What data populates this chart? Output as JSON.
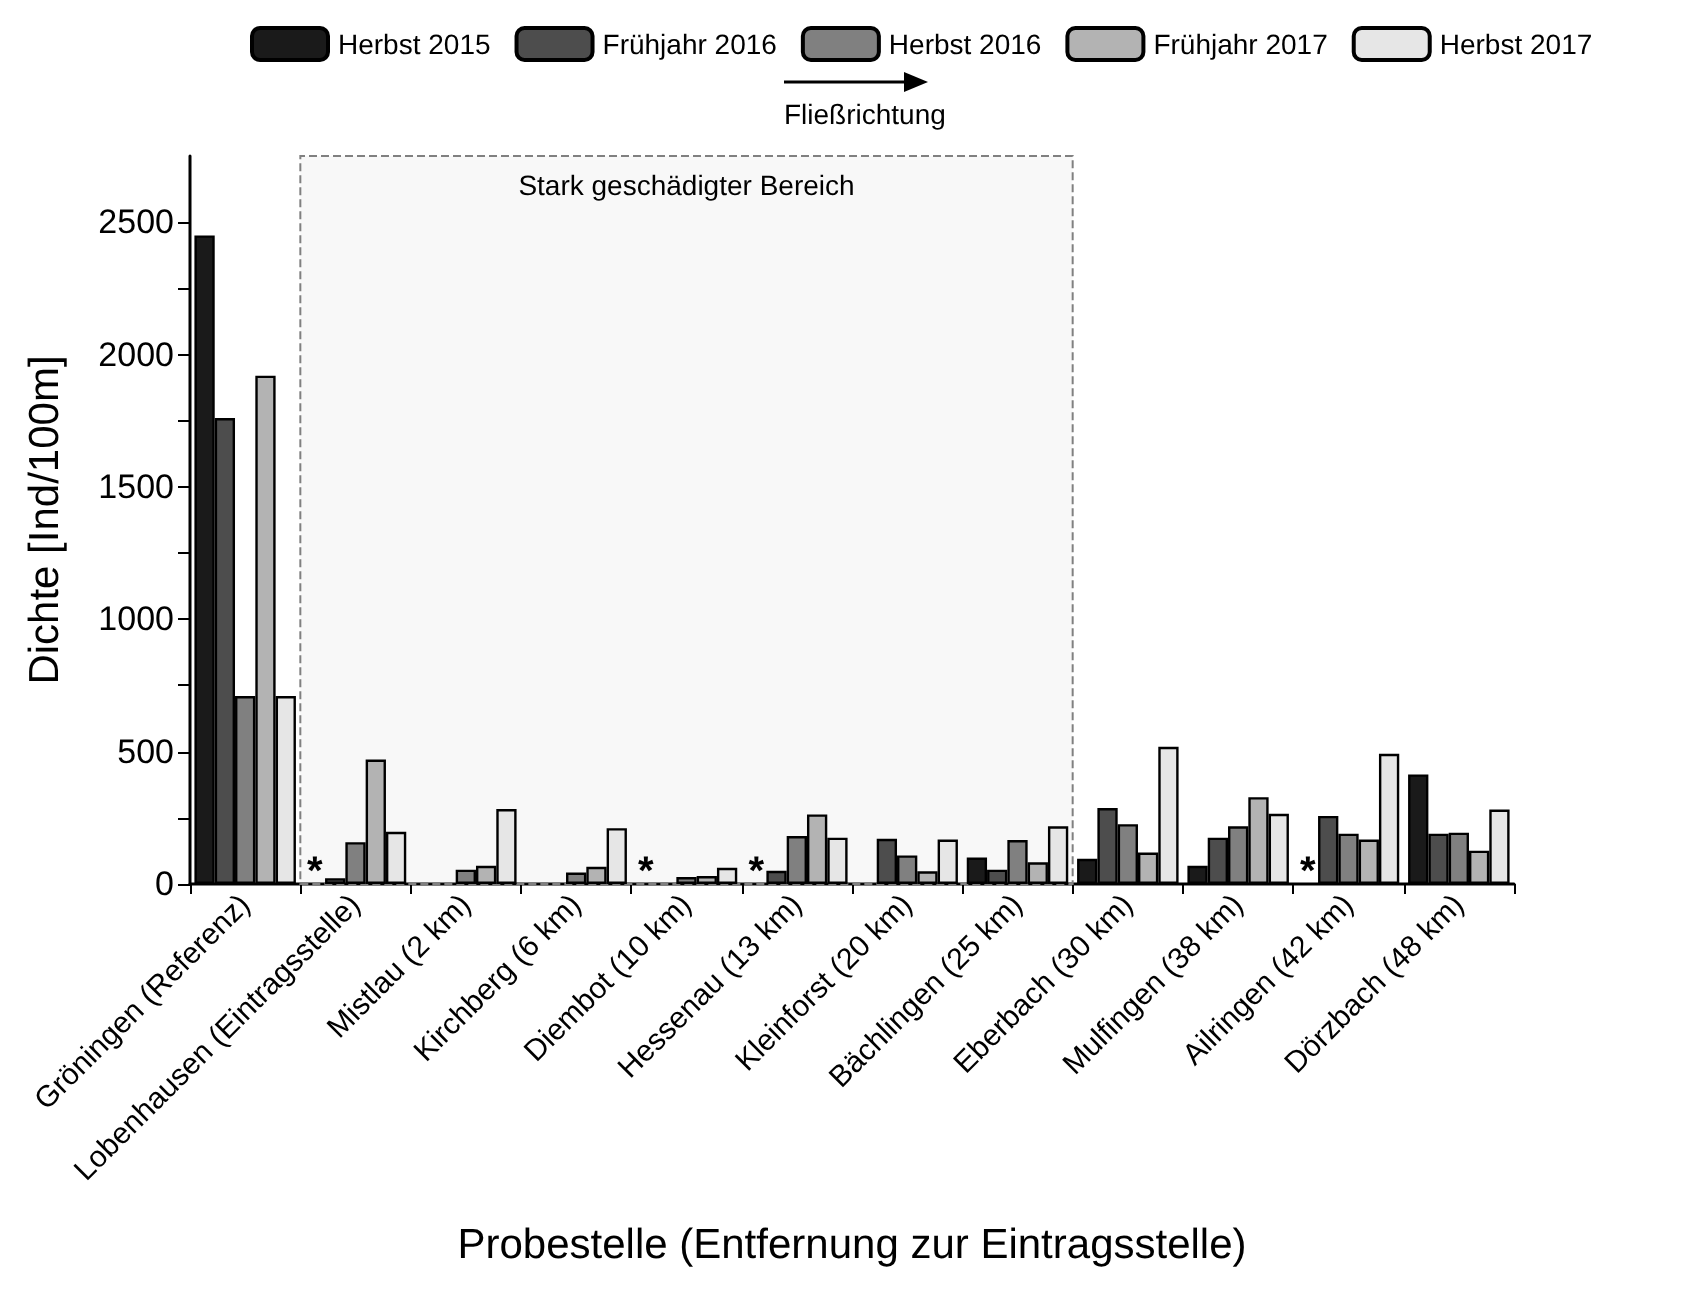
{
  "chart_data": {
    "type": "bar",
    "xlabel": "Probestelle (Entfernung zur Eintragsstelle)",
    "ylabel": "Dichte [Ind/100m]",
    "categories": [
      "Gröningen (Referenz)",
      "Lobenhausen (Eintragsstelle)",
      "Mistlau (2 km)",
      "Kirchberg (6 km)",
      "Diembot (10 km)",
      "Hessenau (13 km)",
      "Kleinforst (20 km)",
      "Bächlingen (25 km)",
      "Eberbach (30 km)",
      "Mulfingen (38 km)",
      "Ailringen (42 km)",
      "Dörzbach (48 km)"
    ],
    "series": [
      {
        "name": "Herbst 2015",
        "color": "#1a1a1a",
        "values": [
          2450,
          null,
          null,
          null,
          null,
          null,
          null,
          100,
          95,
          69,
          null,
          414
        ]
      },
      {
        "name": "Frühjahr 2016",
        "color": "#4d4d4d",
        "values": [
          1760,
          22,
          null,
          null,
          null,
          50,
          171,
          54,
          287,
          175,
          257,
          190
        ]
      },
      {
        "name": "Herbst 2016",
        "color": "#808080",
        "values": [
          710,
          158,
          54,
          43,
          26,
          181,
          108,
          166,
          226,
          218,
          190,
          194
        ]
      },
      {
        "name": "Frühjahr 2017",
        "color": "#b3b3b3",
        "values": [
          1920,
          470,
          69,
          65,
          30,
          263,
          48,
          82,
          119,
          328,
          168,
          126
        ]
      },
      {
        "name": "Herbst 2017",
        "color": "#e6e6e6",
        "values": [
          710,
          197,
          283,
          211,
          61,
          175,
          168,
          218,
          518,
          265,
          492,
          281
        ]
      }
    ],
    "ylim": [
      0,
      2750
    ],
    "yticks": [
      0,
      {
        "value": 250,
        "label": null
      },
      500,
      {
        "value": 750,
        "label": null
      },
      1000,
      {
        "value": 1250,
        "label": null
      },
      1500,
      {
        "value": 1750,
        "label": null
      },
      2000,
      {
        "value": 2250,
        "label": null
      },
      2500
    ],
    "bands": [
      {
        "axis": "x",
        "from": "Lobenhausen (Eintragsstelle)",
        "to": "Bächlingen (25 km)",
        "label": "Stark geschädigter Bereich",
        "color": "#808080"
      }
    ],
    "annotations": [
      "Fließrichtung",
      {
        "text": "*",
        "x": "Lobenhausen (Eintragsstelle)",
        "y": 0
      },
      {
        "text": "*",
        "x": "Diembot (10 km)",
        "y": 0
      },
      {
        "text": "*",
        "x": "Hessenau (13 km)",
        "y": 0
      },
      {
        "text": "*",
        "x": "Ailringen (42 km)",
        "y": 0
      }
    ],
    "legend": "top",
    "grid": false
  }
}
